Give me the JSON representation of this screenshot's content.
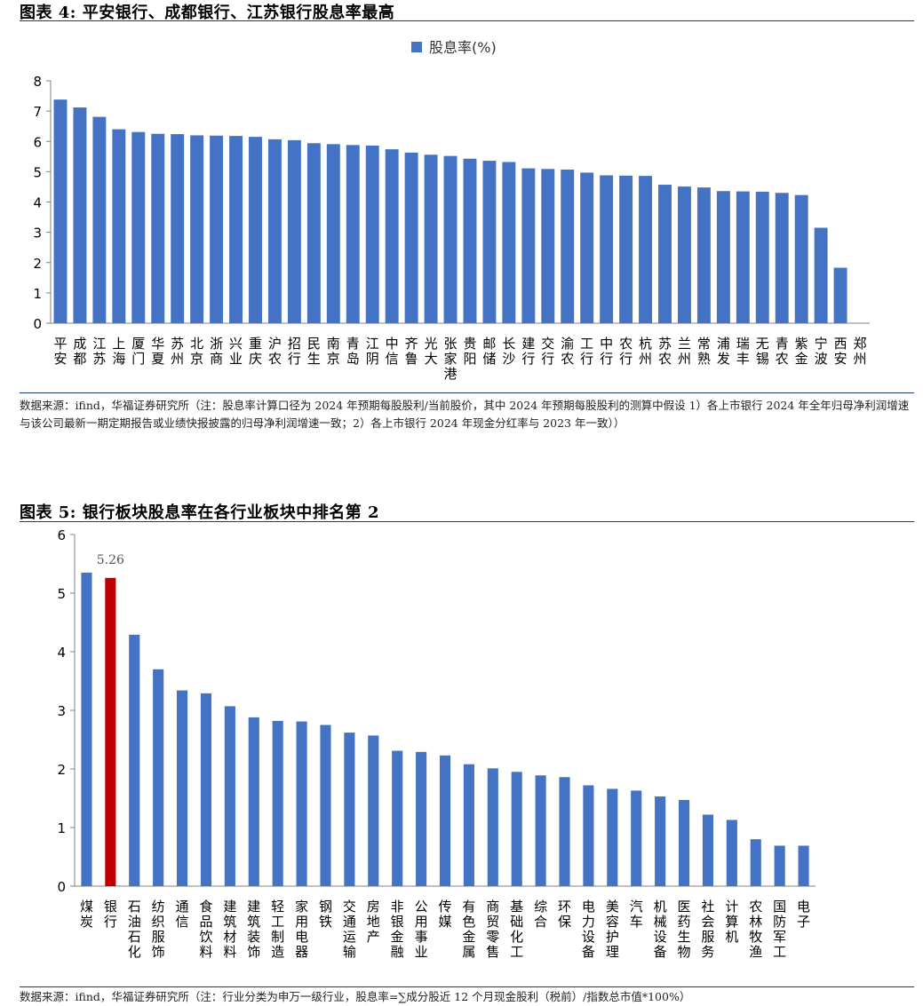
{
  "figures": [
    {
      "title": "图表 4:  平安银行、成都银行、江苏银行股息率最高",
      "source_note": "数据来源：ifind，华福证券研究所（注：股息率计算口径为 2024 年预期每股股利/当前股价，其中 2024 年预期每股股利的测算中假设 1）各上市银行 2024 年全年归母净利润增速与该公司最新一期定期报告或业绩快报披露的归母净利润增速一致；2）各上市银行 2024 年现金分红率与 2023 年一致））"
    },
    {
      "title": "图表 5:  银行板块股息率在各行业板块中排名第 2",
      "source_note": "数据来源：ifind，华福证券研究所（注：行业分类为申万一级行业，股息率=∑成分股近 12 个月现金股利（税前）/指数总市值*100%）"
    }
  ],
  "chart_data": [
    {
      "type": "bar",
      "title": "图表 4:  平安银行、成都银行、江苏银行股息率最高",
      "legend": [
        "股息率(%)"
      ],
      "legend_position": "top-center",
      "xlabel": "",
      "ylabel": "",
      "ylim": [
        0,
        8
      ],
      "yticks": [
        "0",
        "1",
        "2",
        "3",
        "4",
        "5",
        "6",
        "7",
        "8"
      ],
      "grid": false,
      "categories": [
        "平安",
        "成都",
        "江苏",
        "上海",
        "厦门",
        "华夏",
        "苏州",
        "北京",
        "浙商",
        "兴业",
        "重庆",
        "沪农",
        "招行",
        "民生",
        "南京",
        "青岛",
        "江阴",
        "中信",
        "齐鲁",
        "光大",
        "张家港",
        "贵阳",
        "邮储",
        "长沙",
        "建行",
        "交行",
        "渝农",
        "工行",
        "中行",
        "农行",
        "杭州",
        "苏农",
        "兰州",
        "常熟",
        "浦发",
        "瑞丰",
        "无锡",
        "青农",
        "紫金",
        "宁波",
        "西安",
        "郑州"
      ],
      "series": [
        {
          "name": "股息率(%)",
          "color": "#4472c4",
          "values": [
            7.38,
            7.12,
            6.81,
            6.4,
            6.31,
            6.25,
            6.24,
            6.2,
            6.19,
            6.18,
            6.15,
            6.07,
            6.04,
            5.94,
            5.91,
            5.88,
            5.86,
            5.74,
            5.63,
            5.56,
            5.52,
            5.43,
            5.36,
            5.32,
            5.11,
            5.09,
            5.07,
            4.97,
            4.88,
            4.87,
            4.86,
            4.57,
            4.51,
            4.48,
            4.36,
            4.35,
            4.34,
            4.3,
            4.23,
            3.15,
            1.83,
            0
          ]
        }
      ]
    },
    {
      "type": "bar",
      "title": "图表 5:  银行板块股息率在各行业板块中排名第 2",
      "legend": [],
      "xlabel": "",
      "ylabel": "",
      "ylim": [
        0,
        6
      ],
      "yticks": [
        "0",
        "1",
        "2",
        "3",
        "4",
        "5",
        "6"
      ],
      "grid": false,
      "annotations": [
        {
          "category": "银行",
          "text": "5.26"
        }
      ],
      "categories": [
        "煤炭",
        "银行",
        "石油石化",
        "纺织服饰",
        "通信",
        "食品饮料",
        "建筑材料",
        "建筑装饰",
        "轻工制造",
        "家用电器",
        "钢铁",
        "交通运输",
        "房地产",
        "非银金融",
        "公用事业",
        "传媒",
        "有色金属",
        "商贸零售",
        "基础化工",
        "综合",
        "环保",
        "电力设备",
        "美容护理",
        "汽车",
        "机械设备",
        "医药生物",
        "社会服务",
        "计算机",
        "农林牧渔",
        "国防军工",
        "电子"
      ],
      "series": [
        {
          "name": "股息率",
          "color": "#4472c4",
          "highlight": {
            "category": "银行",
            "color": "#c00000"
          },
          "values": [
            5.35,
            5.26,
            4.29,
            3.7,
            3.34,
            3.29,
            3.07,
            2.88,
            2.82,
            2.81,
            2.75,
            2.62,
            2.57,
            2.31,
            2.29,
            2.23,
            2.08,
            2.01,
            1.95,
            1.89,
            1.86,
            1.72,
            1.66,
            1.63,
            1.53,
            1.47,
            1.22,
            1.13,
            0.8,
            0.69,
            0.69
          ]
        }
      ]
    }
  ]
}
